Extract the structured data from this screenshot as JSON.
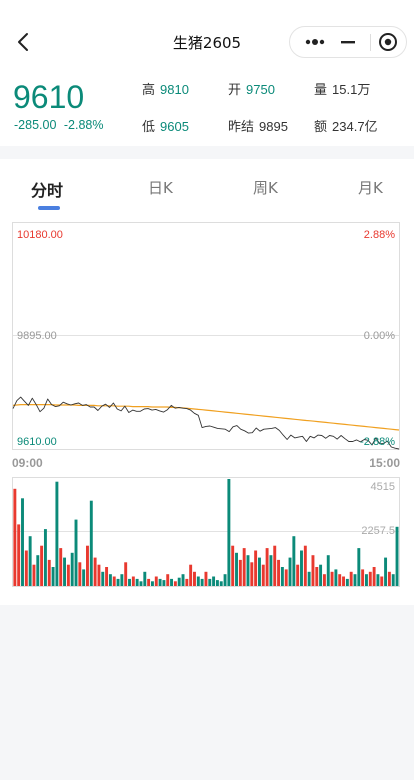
{
  "header": {
    "title": "生猪2605"
  },
  "quote": {
    "price": "9610",
    "change": "-285.00",
    "change_pct": "-2.88%",
    "stats": [
      {
        "label": "高",
        "value": "9810",
        "tone": "green"
      },
      {
        "label": "开",
        "value": "9750",
        "tone": "green"
      },
      {
        "label": "量",
        "value": "15.1万",
        "tone": "dark"
      },
      {
        "label": "低",
        "value": "9605",
        "tone": "green"
      },
      {
        "label": "昨结",
        "value": "9895",
        "tone": "dark"
      },
      {
        "label": "额",
        "value": "234.7亿",
        "tone": "dark"
      }
    ]
  },
  "tabs": [
    {
      "label": "分时",
      "active": true
    },
    {
      "label": "日K",
      "active": false
    },
    {
      "label": "周K",
      "active": false
    },
    {
      "label": "月K",
      "active": false
    }
  ],
  "colors": {
    "up": "#e8392f",
    "down": "#0b8a79",
    "avg_line": "#f0a020",
    "price_line": "#333333",
    "accent": "#4a7fe0"
  },
  "chart_data": {
    "type": "line",
    "price_axis": {
      "top": "10180.00",
      "mid": "9895.00",
      "bottom": "9610.00",
      "min": 9610,
      "max": 10180
    },
    "pct_axis": {
      "top": "2.88%",
      "mid": "0.00%",
      "bottom": "-2.88%"
    },
    "x_labels": {
      "start": "09:00",
      "end": "15:00"
    },
    "price_series": [
      9712,
      9732,
      9741,
      9730,
      9720,
      9738,
      9722,
      9704,
      9713,
      9736,
      9722,
      9717,
      9719,
      9728,
      9724,
      9721,
      9724,
      9726,
      9720,
      9722,
      9716,
      9716,
      9707,
      9718,
      9723,
      9715,
      9726,
      9711,
      9706,
      9718,
      9702,
      9708,
      9705,
      9705,
      9711,
      9712,
      9708,
      9710,
      9706,
      9703,
      9709,
      9720,
      9713,
      9715,
      9713,
      9712,
      9708,
      9700,
      9695,
      9664,
      9667,
      9668,
      9665,
      9662,
      9661,
      9660,
      9654,
      9666,
      9669,
      9660,
      9656,
      9650,
      9651,
      9663,
      9655,
      9660,
      9661,
      9662,
      9664,
      9657,
      9645,
      9634,
      9645,
      9638,
      9640,
      9642,
      9629,
      9642,
      9638,
      9645,
      9644,
      9637,
      9644,
      9642,
      9635,
      9644,
      9636,
      9629,
      9629,
      9633,
      9628,
      9634,
      9632,
      9620,
      9638,
      9623,
      9624,
      9630,
      9615,
      9612,
      9610
    ],
    "avg_series": [
      9720,
      9721,
      9722,
      9722,
      9722,
      9722,
      9722,
      9722,
      9722,
      9722,
      9722,
      9721,
      9721,
      9721,
      9721,
      9721,
      9721,
      9720,
      9720,
      9720,
      9720,
      9720,
      9719,
      9719,
      9719,
      9719,
      9719,
      9718,
      9718,
      9718,
      9718,
      9717,
      9717,
      9717,
      9717,
      9717,
      9716,
      9716,
      9716,
      9716,
      9716,
      9715,
      9715,
      9714,
      9714,
      9713,
      9712,
      9711,
      9710,
      9709,
      9708,
      9707,
      9706,
      9705,
      9704,
      9703,
      9702,
      9701,
      9700,
      9699,
      9698,
      9697,
      9696,
      9695,
      9694,
      9693,
      9692,
      9691,
      9690,
      9689,
      9688,
      9687,
      9686,
      9685,
      9684,
      9683,
      9682,
      9681,
      9680,
      9679,
      9678,
      9677,
      9676,
      9675,
      9674,
      9673,
      9672,
      9671,
      9670,
      9669,
      9668,
      9667,
      9666,
      9665,
      9664,
      9663,
      9662,
      9661,
      9660,
      9659,
      9658
    ],
    "volume_axis": {
      "max_label": "4515",
      "mid_label": "2257.5",
      "max": 4515
    },
    "volume_series": [
      {
        "v": 4100,
        "d": "up"
      },
      {
        "v": 2600,
        "d": "up"
      },
      {
        "v": 3700,
        "d": "down"
      },
      {
        "v": 1500,
        "d": "up"
      },
      {
        "v": 2100,
        "d": "down"
      },
      {
        "v": 900,
        "d": "up"
      },
      {
        "v": 1300,
        "d": "down"
      },
      {
        "v": 1700,
        "d": "up"
      },
      {
        "v": 2400,
        "d": "down"
      },
      {
        "v": 1100,
        "d": "up"
      },
      {
        "v": 800,
        "d": "down"
      },
      {
        "v": 4400,
        "d": "down"
      },
      {
        "v": 1600,
        "d": "up"
      },
      {
        "v": 1200,
        "d": "down"
      },
      {
        "v": 900,
        "d": "up"
      },
      {
        "v": 1400,
        "d": "down"
      },
      {
        "v": 2800,
        "d": "down"
      },
      {
        "v": 1000,
        "d": "up"
      },
      {
        "v": 700,
        "d": "down"
      },
      {
        "v": 1700,
        "d": "up"
      },
      {
        "v": 3600,
        "d": "down"
      },
      {
        "v": 1200,
        "d": "up"
      },
      {
        "v": 900,
        "d": "up"
      },
      {
        "v": 600,
        "d": "down"
      },
      {
        "v": 800,
        "d": "up"
      },
      {
        "v": 500,
        "d": "down"
      },
      {
        "v": 400,
        "d": "up"
      },
      {
        "v": 300,
        "d": "down"
      },
      {
        "v": 500,
        "d": "down"
      },
      {
        "v": 1000,
        "d": "up"
      },
      {
        "v": 300,
        "d": "down"
      },
      {
        "v": 400,
        "d": "up"
      },
      {
        "v": 300,
        "d": "down"
      },
      {
        "v": 200,
        "d": "down"
      },
      {
        "v": 600,
        "d": "down"
      },
      {
        "v": 300,
        "d": "up"
      },
      {
        "v": 200,
        "d": "down"
      },
      {
        "v": 400,
        "d": "up"
      },
      {
        "v": 300,
        "d": "down"
      },
      {
        "v": 250,
        "d": "down"
      },
      {
        "v": 500,
        "d": "up"
      },
      {
        "v": 300,
        "d": "down"
      },
      {
        "v": 200,
        "d": "up"
      },
      {
        "v": 350,
        "d": "down"
      },
      {
        "v": 500,
        "d": "down"
      },
      {
        "v": 300,
        "d": "up"
      },
      {
        "v": 900,
        "d": "up"
      },
      {
        "v": 600,
        "d": "up"
      },
      {
        "v": 400,
        "d": "down"
      },
      {
        "v": 300,
        "d": "down"
      },
      {
        "v": 600,
        "d": "up"
      },
      {
        "v": 300,
        "d": "down"
      },
      {
        "v": 400,
        "d": "down"
      },
      {
        "v": 250,
        "d": "down"
      },
      {
        "v": 200,
        "d": "down"
      },
      {
        "v": 500,
        "d": "down"
      },
      {
        "v": 4515,
        "d": "down"
      },
      {
        "v": 1700,
        "d": "up"
      },
      {
        "v": 1400,
        "d": "down"
      },
      {
        "v": 1100,
        "d": "up"
      },
      {
        "v": 1600,
        "d": "up"
      },
      {
        "v": 1300,
        "d": "down"
      },
      {
        "v": 1000,
        "d": "up"
      },
      {
        "v": 1500,
        "d": "up"
      },
      {
        "v": 1200,
        "d": "down"
      },
      {
        "v": 900,
        "d": "up"
      },
      {
        "v": 1600,
        "d": "up"
      },
      {
        "v": 1300,
        "d": "down"
      },
      {
        "v": 1700,
        "d": "up"
      },
      {
        "v": 1100,
        "d": "up"
      },
      {
        "v": 800,
        "d": "down"
      },
      {
        "v": 700,
        "d": "up"
      },
      {
        "v": 1200,
        "d": "down"
      },
      {
        "v": 2100,
        "d": "down"
      },
      {
        "v": 900,
        "d": "up"
      },
      {
        "v": 1500,
        "d": "down"
      },
      {
        "v": 1700,
        "d": "up"
      },
      {
        "v": 600,
        "d": "down"
      },
      {
        "v": 1300,
        "d": "up"
      },
      {
        "v": 800,
        "d": "up"
      },
      {
        "v": 900,
        "d": "down"
      },
      {
        "v": 500,
        "d": "up"
      },
      {
        "v": 1300,
        "d": "down"
      },
      {
        "v": 600,
        "d": "up"
      },
      {
        "v": 700,
        "d": "down"
      },
      {
        "v": 500,
        "d": "up"
      },
      {
        "v": 400,
        "d": "up"
      },
      {
        "v": 300,
        "d": "down"
      },
      {
        "v": 600,
        "d": "up"
      },
      {
        "v": 500,
        "d": "down"
      },
      {
        "v": 1600,
        "d": "down"
      },
      {
        "v": 700,
        "d": "up"
      },
      {
        "v": 500,
        "d": "down"
      },
      {
        "v": 600,
        "d": "up"
      },
      {
        "v": 800,
        "d": "up"
      },
      {
        "v": 500,
        "d": "down"
      },
      {
        "v": 400,
        "d": "up"
      },
      {
        "v": 1200,
        "d": "down"
      },
      {
        "v": 600,
        "d": "up"
      },
      {
        "v": 500,
        "d": "down"
      },
      {
        "v": 2500,
        "d": "down"
      }
    ]
  }
}
